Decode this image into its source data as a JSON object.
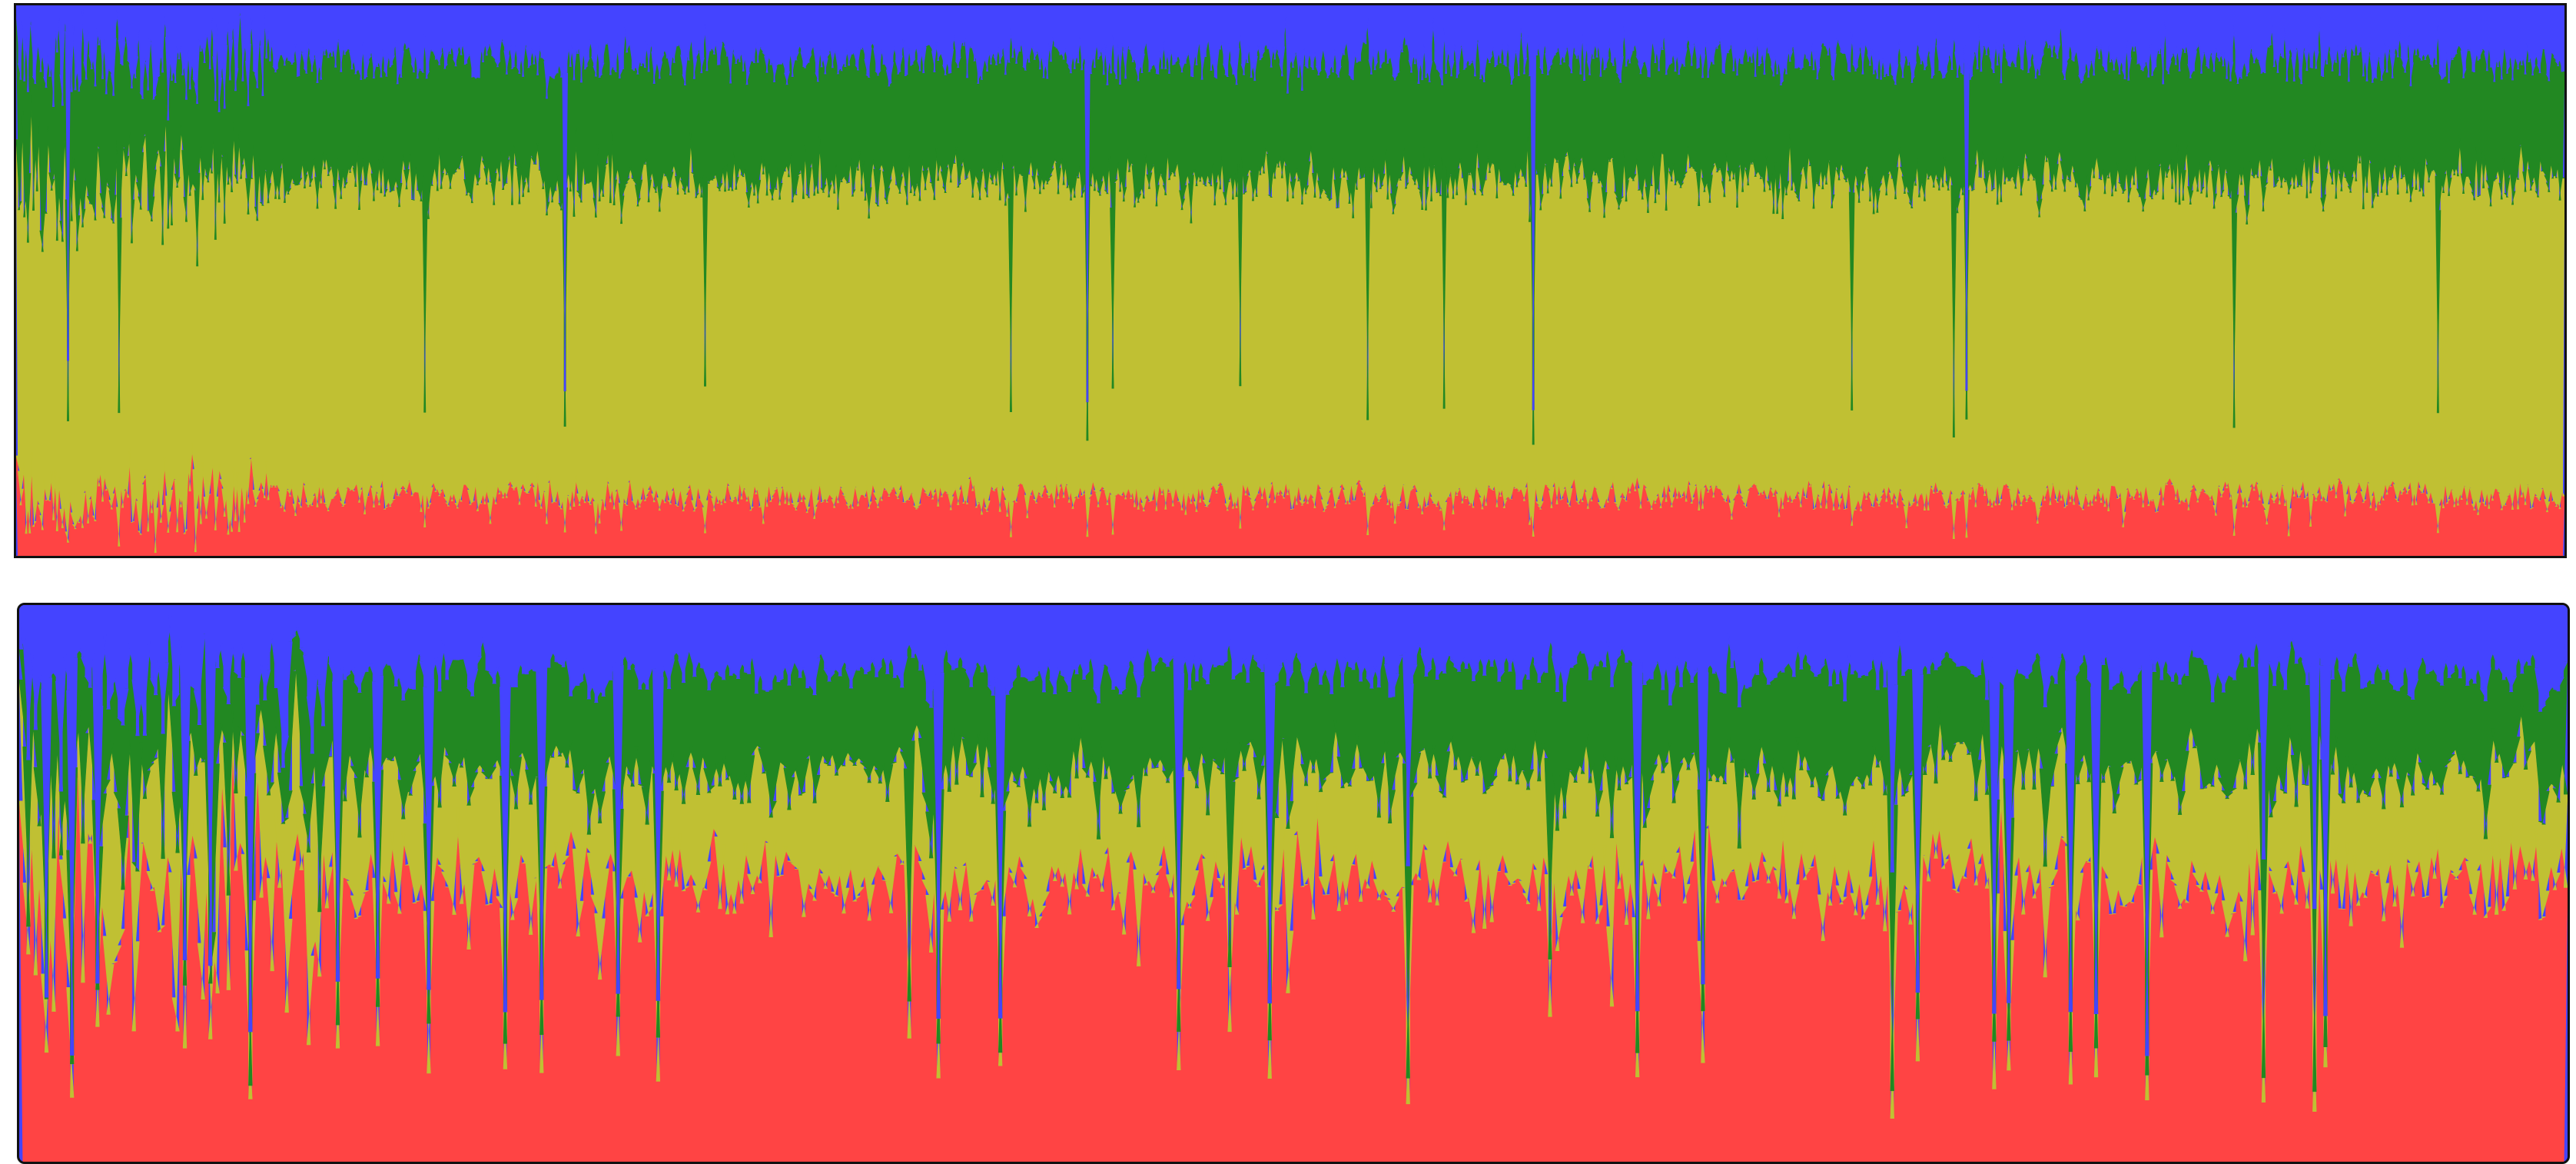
{
  "chart_data": [
    {
      "type": "area",
      "stacked": true,
      "normalized": true,
      "n_columns": 1400,
      "ylim": [
        0,
        1
      ],
      "grid": false,
      "legend": "none",
      "series": [
        {
          "color": "#ff4444",
          "base_share": 0.11,
          "variability": 0.03,
          "stack_order": 1
        },
        {
          "color": "#c0c033",
          "base_share": 0.57,
          "variability": 0.05,
          "stack_order": 2
        },
        {
          "color": "#228822",
          "base_share": 0.22,
          "variability": 0.05,
          "stack_order": 3
        },
        {
          "color": "#4444ff",
          "base_share": 0.1,
          "variability": 0.04,
          "stack_order": 4
        }
      ],
      "early_noise_fraction": 0.1,
      "notable_blue_spikes": [
        0.02,
        0.215,
        0.42,
        0.595,
        0.765
      ],
      "notable_green_spikes": [
        0.04,
        0.16,
        0.27,
        0.39,
        0.43,
        0.48,
        0.53,
        0.56,
        0.72,
        0.76,
        0.87,
        0.95
      ]
    },
    {
      "type": "area",
      "stacked": true,
      "normalized": true,
      "n_columns": 700,
      "ylim": [
        0,
        1
      ],
      "grid": false,
      "legend": "none",
      "series": [
        {
          "color": "#ff4444",
          "base_share": 0.5,
          "variability": 0.12,
          "stack_order": 1
        },
        {
          "color": "#c0c033",
          "base_share": 0.2,
          "variability": 0.08,
          "stack_order": 2
        },
        {
          "color": "#228822",
          "base_share": 0.18,
          "variability": 0.06,
          "stack_order": 3
        },
        {
          "color": "#4444ff",
          "base_share": 0.12,
          "variability": 0.04,
          "stack_order": 4
        }
      ],
      "early_noise_fraction": 0.12,
      "notable_blue_spikes": [
        0.01,
        0.02,
        0.03,
        0.065,
        0.075,
        0.09,
        0.125,
        0.14,
        0.16,
        0.19,
        0.205,
        0.235,
        0.25,
        0.36,
        0.385,
        0.455,
        0.49,
        0.545,
        0.635,
        0.66,
        0.735,
        0.745,
        0.775,
        0.78,
        0.805,
        0.815,
        0.835,
        0.88,
        0.9,
        0.905
      ],
      "notable_green_spikes": [
        0.35,
        0.475,
        0.545,
        0.6,
        0.735,
        0.88,
        0.9
      ]
    }
  ]
}
